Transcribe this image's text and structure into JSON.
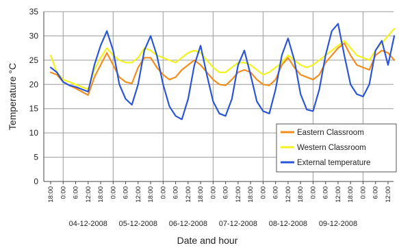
{
  "chart_data": {
    "type": "line",
    "title": "",
    "xlabel": "Date and hour",
    "ylabel": "Temperature °C",
    "ylim": [
      0,
      35
    ],
    "yticks": [
      0,
      5,
      10,
      15,
      20,
      25,
      30,
      35
    ],
    "hour_ticks": [
      "18:00",
      "0:00",
      "6:00",
      "12:00",
      "18:00",
      "0:00",
      "6:00",
      "12:00",
      "18:00",
      "0:00",
      "6:00",
      "12:00",
      "18:00",
      "0:00",
      "6:00",
      "12:00",
      "18:00",
      "0:00",
      "6:00",
      "12:00",
      "18:00",
      "0:00",
      "6:00",
      "12:00",
      "18:00",
      "0:00",
      "6:00",
      "12:00"
    ],
    "date_labels": [
      "04-12-2008",
      "05-12-2008",
      "06-12-2008",
      "07-12-2008",
      "08-12-2008",
      "09-12-2008"
    ],
    "grid": true,
    "legend_position": "bottom-right",
    "series": [
      {
        "name": "Eastern Classroom",
        "color": "#f28c1c",
        "x": [
          0,
          0.5,
          1,
          1.5,
          2,
          2.5,
          3,
          3.5,
          4,
          4.5,
          5,
          5.5,
          6,
          6.5,
          7,
          7.5,
          8,
          8.5,
          9,
          9.5,
          10,
          10.5,
          11,
          11.5,
          12,
          12.5,
          13,
          13.5,
          14,
          14.5,
          15,
          15.5,
          16,
          16.5,
          17,
          17.5,
          18,
          18.5,
          19,
          19.5,
          20,
          20.5,
          21,
          21.5,
          22,
          22.5,
          23,
          23.5,
          24,
          24.5,
          25,
          25.5,
          26,
          26.5,
          27,
          27.5
        ],
        "y": [
          22.5,
          22,
          20.5,
          19.8,
          19.2,
          18.5,
          17.8,
          21.5,
          24,
          26.5,
          24,
          21.5,
          20.5,
          20.2,
          23.5,
          25.5,
          25.5,
          23.5,
          22,
          21,
          21.5,
          23,
          24,
          25,
          24,
          22.5,
          21,
          20,
          19.8,
          21,
          22.5,
          23,
          22.5,
          21,
          20,
          19.8,
          21,
          24,
          25.5,
          23.5,
          22,
          21.5,
          21,
          22,
          24.5,
          26,
          27.5,
          28.5,
          26,
          24,
          23.5,
          23,
          26,
          27,
          26.5,
          25
        ]
      },
      {
        "name": "Western Classroom",
        "color": "#f2f21c",
        "x": [
          0,
          0.5,
          1,
          1.5,
          2,
          2.5,
          3,
          3.5,
          4,
          4.5,
          5,
          5.5,
          6,
          6.5,
          7,
          7.5,
          8,
          8.5,
          9,
          9.5,
          10,
          10.5,
          11,
          11.5,
          12,
          12.5,
          13,
          13.5,
          14,
          14.5,
          15,
          15.5,
          16,
          16.5,
          17,
          17.5,
          18,
          18.5,
          19,
          19.5,
          20,
          20.5,
          21,
          21.5,
          22,
          22.5,
          23,
          23.5,
          24,
          24.5,
          25,
          25.5,
          26,
          26.5,
          27,
          27.5
        ],
        "y": [
          26,
          22.5,
          21,
          20.5,
          20,
          19.5,
          19,
          23,
          25.5,
          27.5,
          26,
          25,
          24.5,
          24.5,
          25.5,
          27.5,
          27,
          26,
          25.5,
          25,
          24.5,
          25.5,
          26.5,
          27,
          26.5,
          25,
          23.5,
          22.5,
          22.5,
          23.5,
          24.5,
          24.5,
          24,
          23,
          22,
          22.5,
          23.5,
          24.5,
          26,
          25,
          24,
          23.5,
          24,
          25,
          26,
          27,
          28,
          29,
          27.5,
          26,
          25.5,
          25,
          27,
          28.5,
          30,
          31.5
        ]
      },
      {
        "name": "External temperature",
        "color": "#2a55d6",
        "x": [
          0,
          0.5,
          1,
          1.5,
          2,
          2.5,
          3,
          3.5,
          4,
          4.5,
          5,
          5.5,
          6,
          6.5,
          7,
          7.5,
          8,
          8.5,
          9,
          9.5,
          10,
          10.5,
          11,
          11.5,
          12,
          12.5,
          13,
          13.5,
          14,
          14.5,
          15,
          15.5,
          16,
          16.5,
          17,
          17.5,
          18,
          18.5,
          19,
          19.5,
          20,
          20.5,
          21,
          21.5,
          22,
          22.5,
          23,
          23.5,
          24,
          24.5,
          25,
          25.5,
          26,
          26.5,
          27,
          27.5
        ],
        "y": [
          23.5,
          22.5,
          20.5,
          19.8,
          19.5,
          19,
          18.5,
          24,
          28,
          31,
          27,
          20,
          17,
          15.8,
          20,
          27,
          30,
          26,
          20,
          15.5,
          13.5,
          12.8,
          17,
          24,
          28,
          22,
          16.5,
          14,
          13.5,
          17,
          24,
          27,
          22,
          16.5,
          14.5,
          14,
          19,
          26,
          29.5,
          25,
          18,
          14.8,
          14.5,
          19,
          26,
          31,
          32.5,
          26,
          20,
          18,
          17.5,
          20,
          27,
          29,
          24,
          30
        ]
      }
    ]
  }
}
